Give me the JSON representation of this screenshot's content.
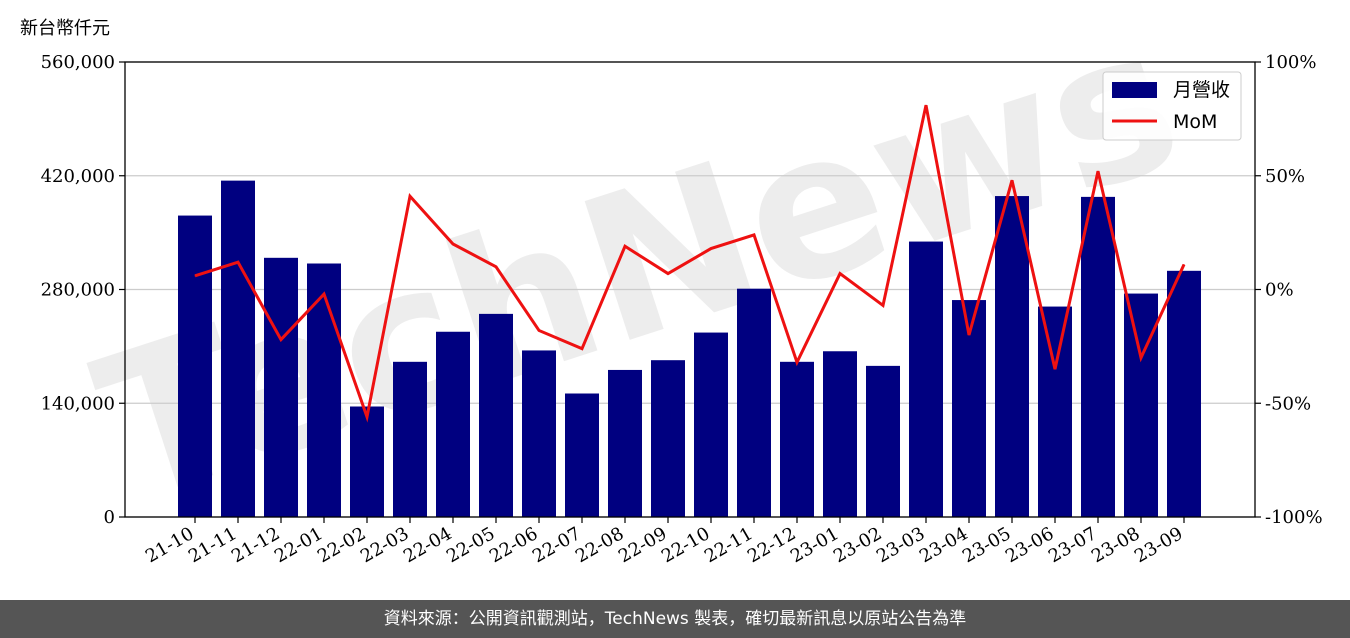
{
  "chart_data": {
    "type": "bar+line",
    "unit_label": "新台幣仟元",
    "categories": [
      "21-10",
      "21-11",
      "21-12",
      "22-01",
      "22-02",
      "22-03",
      "22-04",
      "22-05",
      "22-06",
      "22-07",
      "22-08",
      "22-09",
      "22-10",
      "22-11",
      "22-12",
      "23-01",
      "23-02",
      "23-03",
      "23-04",
      "23-05",
      "23-06",
      "23-07",
      "23-08",
      "23-09"
    ],
    "series": [
      {
        "name": "月營收",
        "type": "bar",
        "axis": "left",
        "color": "#000080",
        "values": [
          371000,
          414000,
          319000,
          312000,
          136000,
          191000,
          228000,
          250000,
          205000,
          152000,
          181000,
          193000,
          227000,
          281000,
          191000,
          204000,
          186000,
          339000,
          267000,
          395000,
          259000,
          394000,
          275000,
          303000
        ]
      },
      {
        "name": "MoM",
        "type": "line",
        "axis": "right",
        "color": "#ee1111",
        "values": [
          6,
          12,
          -22,
          -2,
          -56,
          41,
          20,
          10,
          -18,
          -26,
          19,
          7,
          18,
          24,
          -32,
          7,
          -7,
          81,
          -20,
          48,
          -35,
          52,
          -30,
          11
        ]
      }
    ],
    "y_left": {
      "min": 0,
      "max": 560000,
      "ticks": [
        0,
        140000,
        280000,
        420000,
        560000
      ],
      "tick_labels": [
        "0",
        "140,000",
        "280,000",
        "420,000",
        "560,000"
      ]
    },
    "y_right": {
      "min": -100,
      "max": 100,
      "ticks": [
        -100,
        -50,
        0,
        50,
        100
      ],
      "tick_labels": [
        "-100%",
        "-50%",
        "0%",
        "50%",
        "100%"
      ]
    },
    "grid": "horizontal",
    "legend": "top-right",
    "watermark": "TechNews"
  },
  "footer": {
    "text": "資料來源：公開資訊觀測站，TechNews 製表，確切最新訊息以原站公告為準"
  }
}
